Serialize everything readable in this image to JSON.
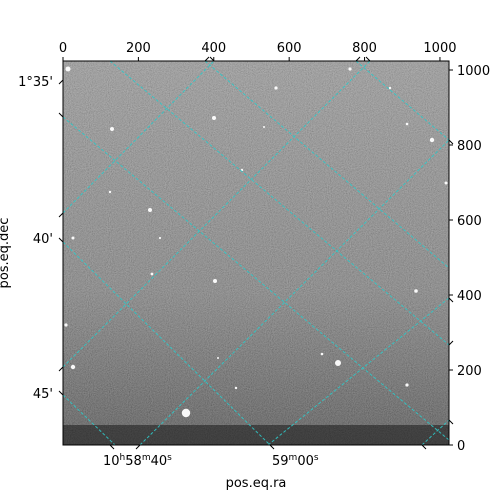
{
  "axes": {
    "xlabel": "pos.eq.ra",
    "ylabel": "pos.eq.dec",
    "pixel_top_ticks": [
      "0",
      "200",
      "400",
      "600",
      "800",
      "1000"
    ],
    "pixel_right_ticks": [
      "0",
      "200",
      "400",
      "600",
      "800",
      "1000"
    ],
    "ra_ticks": [
      {
        "h": "10",
        "m": "58",
        "s": "40",
        "hu": "h",
        "mu": "m",
        "su": "s"
      },
      {
        "m": "59",
        "s": "00",
        "mu": "m",
        "su": "s"
      }
    ],
    "dec_ticks": [
      {
        "main": "1°35'"
      },
      {
        "main": "40'"
      },
      {
        "main": "45'"
      }
    ]
  },
  "colors": {
    "grid": "#2ec8c8",
    "sky_light": "#9a9a9a",
    "sky_dark": "#4a4a4a"
  }
}
